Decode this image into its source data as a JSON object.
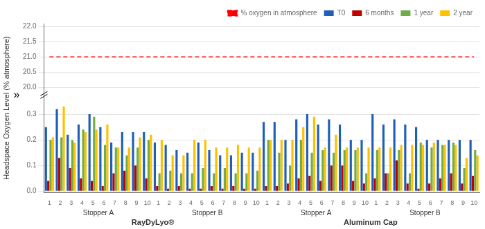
{
  "chart_data": {
    "type": "bar",
    "ylabel": "Headspace Oxygen Level (% atmosphere)",
    "categories": [
      "1",
      "2",
      "3",
      "4",
      "5",
      "6",
      "7",
      "8",
      "9",
      "10",
      "1",
      "2",
      "3",
      "4",
      "5",
      "6",
      "7",
      "8",
      "9",
      "10",
      "1",
      "2",
      "3",
      "4",
      "5",
      "6",
      "7",
      "8",
      "9",
      "10",
      "1",
      "2",
      "3",
      "4",
      "5",
      "6",
      "7",
      "8",
      "9",
      "10"
    ],
    "group_labels": [
      "Stopper A",
      "Stopper B",
      "Stopper A",
      "Stopper B"
    ],
    "main_labels": [
      "RayDyLyo®",
      "Aluminum Cap"
    ],
    "series": [
      {
        "name": "T0",
        "color": "#1f5fba",
        "values": [
          0.25,
          0.32,
          0.22,
          0.26,
          0.3,
          0.25,
          0.19,
          0.23,
          0.23,
          0.23,
          0.19,
          0.18,
          0.16,
          0.15,
          0.19,
          0.16,
          0.14,
          0.14,
          0.15,
          0.15,
          0.27,
          0.27,
          0.2,
          0.28,
          0.3,
          0.26,
          0.28,
          0.26,
          0.2,
          0.2,
          0.3,
          0.26,
          0.28,
          0.26,
          0.25,
          0.2,
          0.2,
          0.2,
          0.2,
          0.2
        ]
      },
      {
        "name": "6 months",
        "color": "#c00000",
        "values": [
          0.04,
          0.13,
          0.09,
          0.05,
          0.04,
          0.02,
          0.07,
          0.08,
          0.1,
          0.05,
          0.02,
          0.01,
          0.02,
          0.01,
          0.01,
          0.02,
          0.01,
          0.02,
          0.01,
          0.01,
          0.02,
          0.02,
          0.03,
          0.05,
          0.06,
          0.04,
          0.1,
          0.1,
          0.04,
          0.03,
          0.05,
          0.07,
          0.12,
          0.03,
          0.01,
          0.03,
          0.05,
          0.07,
          0.03,
          0.06
        ]
      },
      {
        "name": "1 year",
        "color": "#70ad47",
        "values": [
          0.2,
          0.21,
          0.2,
          0.24,
          0.29,
          0.18,
          0.17,
          0.14,
          0.17,
          0.2,
          0.07,
          0.08,
          0.07,
          0.07,
          0.09,
          0.07,
          0.09,
          0.07,
          0.07,
          0.08,
          0.2,
          0.15,
          0.1,
          0.2,
          0.15,
          0.16,
          0.15,
          0.16,
          0.16,
          0.07,
          0.16,
          0.07,
          0.16,
          0.07,
          0.19,
          0.17,
          0.18,
          0.19,
          0.09,
          0.16
        ]
      },
      {
        "name": "2 year",
        "color": "#ffc000",
        "values": [
          0.21,
          0.33,
          0.19,
          0.23,
          0.24,
          0.26,
          0.17,
          0.17,
          0.21,
          0.22,
          0.2,
          0.14,
          0.14,
          0.2,
          0.2,
          0.17,
          0.17,
          0.18,
          0.17,
          0.17,
          0.2,
          0.2,
          0.2,
          0.25,
          0.29,
          0.17,
          0.22,
          0.17,
          0.17,
          0.17,
          0.17,
          0.17,
          0.18,
          0.18,
          0.18,
          0.19,
          0.18,
          0.18,
          0.13,
          0.14
        ]
      }
    ],
    "ylim": [
      -0.005,
      0.375
    ],
    "yticks": [
      {
        "value": 0.0,
        "label": "0.0"
      },
      0.1,
      0.2,
      0.3
    ],
    "y2lim": [
      19.75,
      22.1
    ],
    "y2ticks": [
      {
        "value": 20.0,
        "label": "20.0"
      },
      20.5,
      {
        "value": 21.0,
        "label": "21.0"
      },
      21.5,
      {
        "value": 22.0,
        "label": "22.0"
      }
    ],
    "reference_lines": [
      {
        "name": "% oxygen in atmosphere",
        "value": 21.0,
        "color": "#ff0000",
        "line_style": "dashed",
        "axis": "y2"
      }
    ],
    "break_mark": "»",
    "grid": true,
    "legend": "upper right"
  }
}
